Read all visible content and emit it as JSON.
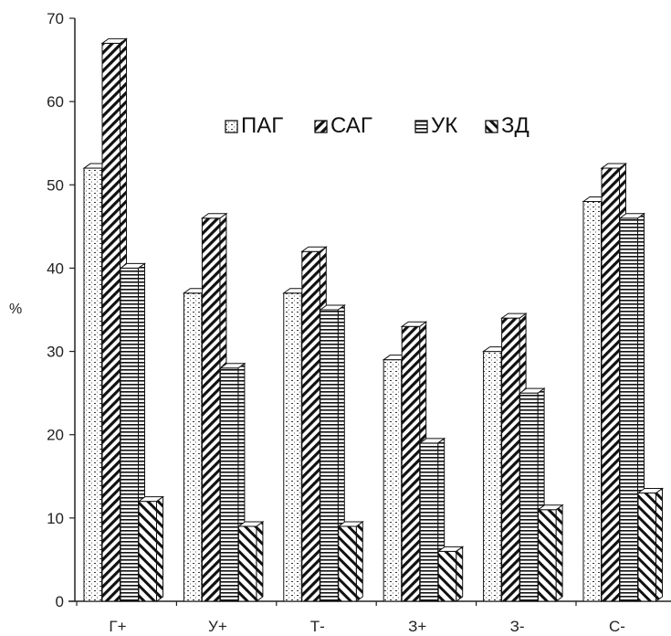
{
  "chart_data": {
    "type": "bar",
    "ylabel": "%",
    "ylim": [
      0,
      70
    ],
    "yticks": [
      0,
      10,
      20,
      30,
      40,
      50,
      60,
      70
    ],
    "categories": [
      "Г+",
      "У+",
      "Т-",
      "З+",
      "З-",
      "С-"
    ],
    "series": [
      {
        "name": "ПАГ",
        "values": [
          52,
          37,
          37,
          29,
          30,
          48
        ],
        "pattern": "dots"
      },
      {
        "name": "САГ",
        "values": [
          67,
          46,
          42,
          33,
          34,
          52
        ],
        "pattern": "back-diagonal"
      },
      {
        "name": "УК",
        "values": [
          40,
          28,
          35,
          19,
          25,
          46
        ],
        "pattern": "horizontal"
      },
      {
        "name": "ЗД",
        "values": [
          12,
          9,
          9,
          6,
          11,
          13
        ],
        "pattern": "forward-diagonal"
      }
    ],
    "legend_position": "top-center",
    "grid": false,
    "style": "3d-bars-black-and-white"
  }
}
